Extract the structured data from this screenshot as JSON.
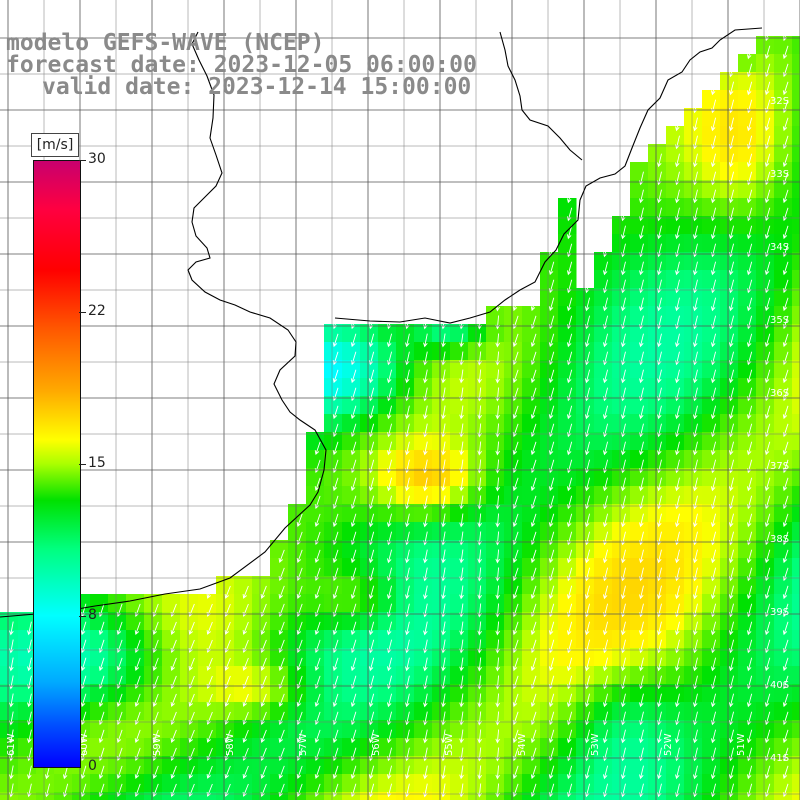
{
  "title": {
    "line1": "modelo GEFS-WAVE (NCEP)",
    "line2": "forecast date: 2023-12-05 06:00:00",
    "line3": "valid date: 2023-12-14 15:00:00"
  },
  "colorbar": {
    "units": "[m/s]",
    "ticks": [
      "30",
      "22",
      "15",
      "8",
      "0"
    ],
    "colors": [
      "#c8006e",
      "#ff0000",
      "#ffaa00",
      "#ffff00",
      "#00e100",
      "#00ffff",
      "#0000ff"
    ]
  },
  "map": {
    "lat_labels": [
      "32S",
      "33S",
      "34S",
      "35S",
      "36S",
      "37S",
      "38S",
      "39S",
      "40S",
      "41S"
    ],
    "lon_labels": [
      "61W",
      "60W",
      "59W",
      "58W",
      "57W",
      "56W",
      "55W",
      "54W",
      "53W",
      "52W",
      "51W"
    ],
    "field": "wind speed and direction",
    "region": "Rio de la Plata / Uruguay / southern Brazil coast"
  }
}
